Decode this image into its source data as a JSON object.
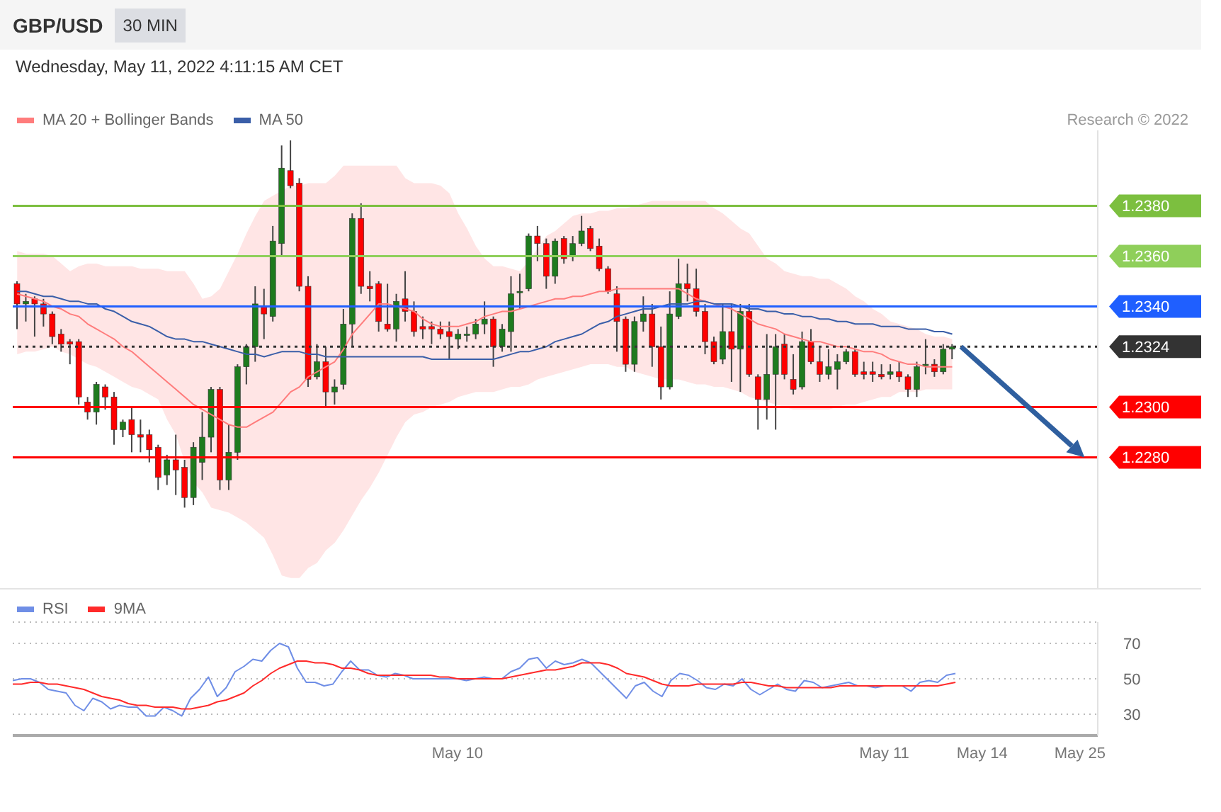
{
  "chart_data": [
    {
      "type": "candlestick",
      "title": "GBP/USD",
      "subtitle": "Wednesday, May 11, 2022 4:11:15 AM CET",
      "annotations": [
        "30 MIN",
        "Research © 2022"
      ],
      "categories": [
        null,
        null,
        null,
        null,
        null,
        null,
        null,
        null,
        null,
        null,
        null,
        null,
        null,
        null,
        null,
        null,
        null,
        null,
        null,
        null,
        null,
        null,
        null,
        null,
        null,
        null,
        null,
        null,
        null,
        null,
        null,
        null,
        null,
        null,
        null,
        null,
        null,
        null,
        null,
        null,
        null,
        null,
        null,
        null,
        null,
        null,
        null,
        null,
        null,
        null,
        null,
        null,
        null,
        null,
        null,
        null,
        null,
        null,
        null,
        null,
        null,
        null,
        null,
        null,
        null,
        null,
        null,
        null,
        null,
        null,
        null,
        null,
        null,
        null,
        null,
        null,
        null,
        null,
        null,
        null,
        null,
        null,
        null,
        null,
        null,
        null,
        null,
        null,
        null,
        null,
        null,
        null,
        null,
        null,
        null,
        null,
        null,
        null,
        null,
        null,
        null,
        null,
        null,
        null,
        null,
        null,
        null
      ],
      "ohlc": [
        [
          1.2349,
          1.235,
          1.2331,
          1.2341
        ],
        [
          1.2341,
          1.2345,
          1.2334,
          1.2342
        ],
        [
          1.2343,
          1.2344,
          1.2328,
          1.2341
        ],
        [
          1.2341,
          1.2343,
          1.2332,
          1.2337
        ],
        [
          1.2337,
          1.2338,
          1.2325,
          1.2328
        ],
        [
          1.2329,
          1.2331,
          1.2322,
          1.2325
        ],
        [
          1.2326,
          1.2327,
          1.2317,
          1.2325
        ],
        [
          1.2326,
          1.2327,
          1.2301,
          1.2304
        ],
        [
          1.2302,
          1.2304,
          1.2295,
          1.2298
        ],
        [
          1.2298,
          1.231,
          1.2293,
          1.2309
        ],
        [
          1.2308,
          1.2309,
          1.2299,
          1.2304
        ],
        [
          1.2304,
          1.2306,
          1.2285,
          1.2291
        ],
        [
          1.2291,
          1.2295,
          1.2288,
          1.2294
        ],
        [
          1.2295,
          1.23,
          1.2282,
          1.2289
        ],
        [
          1.2289,
          1.2295,
          1.2282,
          1.2288
        ],
        [
          1.2289,
          1.2291,
          1.2278,
          1.2283
        ],
        [
          1.2284,
          1.2285,
          1.2267,
          1.2272
        ],
        [
          1.2273,
          1.2281,
          1.2269,
          1.2279
        ],
        [
          1.2279,
          1.2289,
          1.2265,
          1.2275
        ],
        [
          1.2276,
          1.2279,
          1.226,
          1.2264
        ],
        [
          1.2264,
          1.2286,
          1.2261,
          1.2284
        ],
        [
          1.2278,
          1.2298,
          1.2271,
          1.2288
        ],
        [
          1.2288,
          1.2308,
          1.2282,
          1.2307
        ],
        [
          1.2307,
          1.2308,
          1.2267,
          1.2271
        ],
        [
          1.2271,
          1.2293,
          1.2267,
          1.2282
        ],
        [
          1.2282,
          1.2317,
          1.2279,
          1.2316
        ],
        [
          1.2316,
          1.2325,
          1.2309,
          1.2324
        ],
        [
          1.2324,
          1.2348,
          1.2318,
          1.2341
        ],
        [
          1.234,
          1.2347,
          1.2327,
          1.2337
        ],
        [
          1.2336,
          1.2372,
          1.2334,
          1.2366
        ],
        [
          1.2365,
          1.2404,
          1.236,
          1.2395
        ],
        [
          1.2394,
          1.2406,
          1.2387,
          1.2388
        ],
        [
          1.2389,
          1.2391,
          1.2346,
          1.2348
        ],
        [
          1.2348,
          1.2352,
          1.2308,
          1.2311
        ],
        [
          1.2312,
          1.2325,
          1.2311,
          1.2318
        ],
        [
          1.2318,
          1.2324,
          1.23,
          1.2306
        ],
        [
          1.2306,
          1.2311,
          1.2301,
          1.2308
        ],
        [
          1.2309,
          1.2339,
          1.2307,
          1.2333
        ],
        [
          1.2333,
          1.2377,
          1.2324,
          1.2375
        ],
        [
          1.2375,
          1.2381,
          1.2345,
          1.2348
        ],
        [
          1.2348,
          1.2354,
          1.2342,
          1.2347
        ],
        [
          1.2349,
          1.235,
          1.233,
          1.2334
        ],
        [
          1.2333,
          1.2349,
          1.233,
          1.2331
        ],
        [
          1.2331,
          1.2345,
          1.2326,
          1.2342
        ],
        [
          1.2343,
          1.2354,
          1.2334,
          1.2338
        ],
        [
          1.2338,
          1.2342,
          1.2328,
          1.233
        ],
        [
          1.2332,
          1.2336,
          1.2327,
          1.2331
        ],
        [
          1.2332,
          1.2334,
          1.2325,
          1.2331
        ],
        [
          1.2331,
          1.2334,
          1.2327,
          1.2329
        ],
        [
          1.233,
          1.2334,
          1.2319,
          1.2328
        ],
        [
          1.2327,
          1.2331,
          1.2323,
          1.2329
        ],
        [
          1.2329,
          1.2332,
          1.2326,
          1.2329
        ],
        [
          1.2329,
          1.2335,
          1.2327,
          1.2333
        ],
        [
          1.2333,
          1.2342,
          1.2329,
          1.2335
        ],
        [
          1.2335,
          1.2336,
          1.2316,
          1.2324
        ],
        [
          1.2324,
          1.2333,
          1.2322,
          1.2331
        ],
        [
          1.233,
          1.2352,
          1.2322,
          1.2345
        ],
        [
          1.2346,
          1.2353,
          1.2339,
          1.2346
        ],
        [
          1.2347,
          1.2369,
          1.2346,
          1.2368
        ],
        [
          1.2368,
          1.2372,
          1.2358,
          1.2365
        ],
        [
          1.2365,
          1.2367,
          1.2347,
          1.2352
        ],
        [
          1.2352,
          1.2367,
          1.2349,
          1.2366
        ],
        [
          1.2367,
          1.2368,
          1.2357,
          1.2359
        ],
        [
          1.236,
          1.2368,
          1.2358,
          1.2365
        ],
        [
          1.2365,
          1.2376,
          1.2364,
          1.237
        ],
        [
          1.2371,
          1.2372,
          1.2362,
          1.2363
        ],
        [
          1.2364,
          1.2367,
          1.2354,
          1.2355
        ],
        [
          1.2355,
          1.2356,
          1.2345,
          1.2346
        ],
        [
          1.2345,
          1.2348,
          1.2322,
          1.2334
        ],
        [
          1.2335,
          1.2336,
          1.2314,
          1.2317
        ],
        [
          1.2317,
          1.2336,
          1.2314,
          1.2334
        ],
        [
          1.2334,
          1.2344,
          1.233,
          1.2337
        ],
        [
          1.2337,
          1.2341,
          1.2316,
          1.2324
        ],
        [
          1.2324,
          1.2332,
          1.2303,
          1.2308
        ],
        [
          1.2308,
          1.2346,
          1.2307,
          1.2337
        ],
        [
          1.2336,
          1.2359,
          1.2335,
          1.2349
        ],
        [
          1.2349,
          1.2357,
          1.2342,
          1.2347
        ],
        [
          1.2347,
          1.2355,
          1.2336,
          1.2338
        ],
        [
          1.2338,
          1.2341,
          1.2321,
          1.2326
        ],
        [
          1.2326,
          1.2328,
          1.2317,
          1.2318
        ],
        [
          1.2319,
          1.2341,
          1.2317,
          1.233
        ],
        [
          1.233,
          1.2341,
          1.231,
          1.2323
        ],
        [
          1.2323,
          1.2341,
          1.2306,
          1.2338
        ],
        [
          1.2338,
          1.2341,
          1.2312,
          1.2313
        ],
        [
          1.2312,
          1.2313,
          1.2291,
          1.2303
        ],
        [
          1.2303,
          1.2329,
          1.2295,
          1.2313
        ],
        [
          1.2313,
          1.2329,
          1.2291,
          1.2324
        ],
        [
          1.2325,
          1.2329,
          1.2311,
          1.2313
        ],
        [
          1.2311,
          1.2321,
          1.2305,
          1.2307
        ],
        [
          1.2308,
          1.233,
          1.2307,
          1.2326
        ],
        [
          1.2326,
          1.2331,
          1.2317,
          1.2318
        ],
        [
          1.2318,
          1.2324,
          1.231,
          1.2313
        ],
        [
          1.2313,
          1.2323,
          1.2311,
          1.2316
        ],
        [
          1.2315,
          1.2321,
          1.2307,
          1.2318
        ],
        [
          1.2318,
          1.2323,
          1.2317,
          1.2322
        ],
        [
          1.2322,
          1.2323,
          1.2312,
          1.2313
        ],
        [
          1.2314,
          1.2318,
          1.2311,
          1.2313
        ],
        [
          1.2314,
          1.2318,
          1.231,
          1.2313
        ],
        [
          1.2313,
          1.2317,
          1.2311,
          1.2312
        ],
        [
          1.2313,
          1.2317,
          1.2311,
          1.2314
        ],
        [
          1.2314,
          1.2318,
          1.231,
          1.2312
        ],
        [
          1.2312,
          1.2313,
          1.2304,
          1.2307
        ],
        [
          1.2307,
          1.2318,
          1.2304,
          1.2316
        ],
        [
          1.2317,
          1.2327,
          1.2313,
          1.2317
        ],
        [
          1.2317,
          1.2319,
          1.2312,
          1.2314
        ],
        [
          1.2314,
          1.2325,
          1.2313,
          1.2323
        ],
        [
          1.2323,
          1.2325,
          1.2319,
          1.2324
        ]
      ],
      "colors": [
        "#ff0000",
        "#1e7b1e",
        "#ff0000",
        "#ff0000",
        "#ff0000",
        "#ff0000",
        "#ff0000",
        "#ff0000",
        "#ff0000",
        "#1e7b1e",
        "#ff0000",
        "#ff0000",
        "#1e7b1e",
        "#ff0000",
        "#ff0000",
        "#ff0000",
        "#ff0000",
        "#1e7b1e",
        "#ff0000",
        "#ff0000",
        "#1e7b1e",
        "#1e7b1e",
        "#1e7b1e",
        "#ff0000",
        "#1e7b1e",
        "#1e7b1e",
        "#1e7b1e",
        "#1e7b1e",
        "#ff0000",
        "#1e7b1e",
        "#1e7b1e",
        "#ff0000",
        "#ff0000",
        "#ff0000",
        "#1e7b1e",
        "#ff0000",
        "#1e7b1e",
        "#1e7b1e",
        "#1e7b1e",
        "#ff0000",
        "#ff0000",
        "#ff0000",
        "#ff0000",
        "#1e7b1e",
        "#ff0000",
        "#ff0000",
        "#ff0000",
        "#ff0000",
        "#ff0000",
        "#ff0000",
        "#1e7b1e",
        "#1e7b1e",
        "#1e7b1e",
        "#1e7b1e",
        "#ff0000",
        "#1e7b1e",
        "#1e7b1e",
        "#1e7b1e",
        "#1e7b1e",
        "#ff0000",
        "#ff0000",
        "#1e7b1e",
        "#ff0000",
        "#1e7b1e",
        "#1e7b1e",
        "#ff0000",
        "#ff0000",
        "#ff0000",
        "#ff0000",
        "#ff0000",
        "#1e7b1e",
        "#1e7b1e",
        "#ff0000",
        "#ff0000",
        "#1e7b1e",
        "#1e7b1e",
        "#ff0000",
        "#ff0000",
        "#ff0000",
        "#ff0000",
        "#1e7b1e",
        "#ff0000",
        "#1e7b1e",
        "#ff0000",
        "#ff0000",
        "#1e7b1e",
        "#1e7b1e",
        "#ff0000",
        "#ff0000",
        "#1e7b1e",
        "#ff0000",
        "#ff0000",
        "#1e7b1e",
        "#1e7b1e",
        "#1e7b1e",
        "#ff0000",
        "#ff0000",
        "#ff0000",
        "#ff0000",
        "#1e7b1e",
        "#ff0000",
        "#ff0000",
        "#1e7b1e",
        "#1e7b1e",
        "#ff0000",
        "#1e7b1e",
        "#1e7b1e"
      ],
      "series": [
        {
          "name": "MA 20 + Bollinger Bands",
          "type": "line",
          "color": "#ff7c7c",
          "values": [
            1.2345,
            1.2344,
            1.2343,
            1.2342,
            1.234,
            1.2339,
            1.2337,
            1.2336,
            1.2333,
            1.2331,
            1.2329,
            1.2327,
            1.2324,
            1.2322,
            1.2319,
            1.2316,
            1.2313,
            1.231,
            1.2307,
            1.2304,
            1.2301,
            1.2299,
            1.2297,
            1.2295,
            1.2293,
            1.2292,
            1.2292,
            1.2294,
            1.2296,
            1.2298,
            1.2302,
            1.2306,
            1.2308,
            1.2312,
            1.2314,
            1.2316,
            1.2318,
            1.2323,
            1.2329,
            1.2333,
            1.2337,
            1.2341,
            1.2341,
            1.234,
            1.2339,
            1.2338,
            1.2335,
            1.2333,
            1.2332,
            1.2332,
            1.2332,
            1.2333,
            1.2334,
            1.2336,
            1.2337,
            1.2338,
            1.2338,
            1.2339,
            1.234,
            1.2341,
            1.2342,
            1.2343,
            1.2343,
            1.2344,
            1.2344,
            1.2345,
            1.2346,
            1.2346,
            1.2347,
            1.2347,
            1.2347,
            1.2347,
            1.2347,
            1.2347,
            1.2347,
            1.2347,
            1.2345,
            1.2343,
            1.2342,
            1.2341,
            1.234,
            1.2339,
            1.2337,
            1.2335,
            1.2333,
            1.2332,
            1.2331,
            1.2329,
            1.2328,
            1.2327,
            1.2326,
            1.2326,
            1.2325,
            1.2324,
            1.2324,
            1.2323,
            1.2322,
            1.2322,
            1.2321,
            1.2319,
            1.2318,
            1.2317,
            1.2317,
            1.2316,
            1.2316,
            1.2316,
            1.2316
          ],
          "lower": [
            1.2321,
            1.2322,
            1.2322,
            1.2323,
            1.2324,
            1.2322,
            1.2321,
            1.2319,
            1.2317,
            1.2316,
            1.2314,
            1.2312,
            1.231,
            1.2308,
            1.2307,
            1.2305,
            1.2303,
            1.2295,
            1.2289,
            1.2278,
            1.227,
            1.2266,
            1.226,
            1.2259,
            1.2258,
            1.2256,
            1.2254,
            1.2251,
            1.2248,
            1.2241,
            1.2233,
            1.2232,
            1.2232,
            1.2236,
            1.2238,
            1.2243,
            1.2246,
            1.2251,
            1.2257,
            1.2263,
            1.2268,
            1.2274,
            1.2281,
            1.2288,
            1.2294,
            1.2297,
            1.2298,
            1.23,
            1.2301,
            1.2302,
            1.2304,
            1.2305,
            1.2306,
            1.2306,
            1.2306,
            1.2307,
            1.2308,
            1.2308,
            1.2309,
            1.2311,
            1.2312,
            1.2313,
            1.2314,
            1.2315,
            1.2316,
            1.2317,
            1.2317,
            1.2317,
            1.2316,
            1.2316,
            1.2314,
            1.2313,
            1.2312,
            1.2311,
            1.2311,
            1.2311,
            1.231,
            1.2309,
            1.2309,
            1.2308,
            1.2308,
            1.2307,
            1.2306,
            1.2304,
            1.2303,
            1.2302,
            1.2301,
            1.23,
            1.2299,
            1.2299,
            1.2299,
            1.2299,
            1.2299,
            1.23,
            1.2301,
            1.2301,
            1.2302,
            1.2303,
            1.2304,
            1.2304,
            1.2306,
            1.2306,
            1.2306,
            1.2307,
            1.2307,
            1.2307,
            1.2307
          ],
          "upper": [
            1.2362,
            1.2361,
            1.2361,
            1.2361,
            1.236,
            1.2357,
            1.2354,
            1.2356,
            1.2357,
            1.2357,
            1.2356,
            1.2356,
            1.2356,
            1.2356,
            1.2355,
            1.2355,
            1.2355,
            1.2354,
            1.2354,
            1.2354,
            1.2349,
            1.2343,
            1.2344,
            1.2347,
            1.2354,
            1.2361,
            1.2369,
            1.2376,
            1.2382,
            1.2384,
            1.2386,
            1.2388,
            1.2388,
            1.2389,
            1.2389,
            1.2389,
            1.2392,
            1.2396,
            1.2396,
            1.2396,
            1.2396,
            1.2396,
            1.2396,
            1.2396,
            1.2391,
            1.2389,
            1.2389,
            1.2389,
            1.2388,
            1.2385,
            1.2377,
            1.2371,
            1.2364,
            1.2359,
            1.2356,
            1.2356,
            1.2355,
            1.2354,
            1.2358,
            1.2363,
            1.2368,
            1.237,
            1.2373,
            1.2376,
            1.2377,
            1.2377,
            1.2378,
            1.2378,
            1.2379,
            1.2379,
            1.238,
            1.2381,
            1.2382,
            1.2382,
            1.2382,
            1.2382,
            1.2382,
            1.2382,
            1.2382,
            1.2379,
            1.2377,
            1.2374,
            1.2371,
            1.2369,
            1.2364,
            1.2359,
            1.2357,
            1.2354,
            1.2353,
            1.2352,
            1.2352,
            1.2351,
            1.2351,
            1.2349,
            1.2347,
            1.2344,
            1.2342,
            1.2339,
            1.2337,
            1.2334,
            1.2333,
            1.2332,
            1.2331,
            1.2329,
            1.2328,
            1.2328,
            1.2327
          ]
        },
        {
          "name": "MA 50",
          "type": "line",
          "color": "#3a5ea8",
          "values": [
            1.2346,
            1.2346,
            1.2345,
            1.2344,
            1.2344,
            1.2343,
            1.2342,
            1.2342,
            1.2341,
            1.2341,
            1.2339,
            1.2338,
            1.2336,
            1.2334,
            1.2333,
            1.2332,
            1.233,
            1.2328,
            1.2327,
            1.2327,
            1.2326,
            1.2326,
            1.2325,
            1.2324,
            1.2323,
            1.2322,
            1.2321,
            1.2321,
            1.232,
            1.2321,
            1.2322,
            1.2322,
            1.2322,
            1.2321,
            1.2321,
            1.232,
            1.232,
            1.232,
            1.232,
            1.232,
            1.232,
            1.232,
            1.232,
            1.232,
            1.232,
            1.232,
            1.232,
            1.2319,
            1.2319,
            1.2319,
            1.2319,
            1.2319,
            1.2319,
            1.2319,
            1.2319,
            1.232,
            1.2321,
            1.2322,
            1.2322,
            1.2323,
            1.2324,
            1.2326,
            1.2327,
            1.2328,
            1.2329,
            1.2331,
            1.2333,
            1.2334,
            1.2336,
            1.2337,
            1.2338,
            1.2339,
            1.2339,
            1.234,
            1.2341,
            1.2341,
            1.2341,
            1.2342,
            1.2342,
            1.2341,
            1.2341,
            1.2341,
            1.234,
            1.2339,
            1.2339,
            1.2338,
            1.2338,
            1.2337,
            1.2337,
            1.2336,
            1.2336,
            1.2335,
            1.2335,
            1.2334,
            1.2334,
            1.2333,
            1.2333,
            1.2333,
            1.2332,
            1.2332,
            1.2332,
            1.2331,
            1.2331,
            1.2331,
            1.233,
            1.233,
            1.2329
          ]
        }
      ],
      "ylim": [
        1.2228,
        1.241
      ],
      "yticks": [
        {
          "value": 1.228,
          "label": "1.2280"
        },
        {
          "value": 1.23,
          "label": "1.2300"
        },
        1.2324,
        {
          "value": 1.234,
          "label": "1.2340"
        },
        {
          "value": 1.236,
          "label": "1.2360"
        },
        {
          "value": 1.238,
          "label": "1.2380"
        }
      ],
      "tick_labels": "y",
      "legend": "top left",
      "ref_lines": [
        {
          "axis": "y",
          "value": 1.238,
          "color": "#7cbf3f"
        },
        {
          "axis": "y",
          "value": 1.236,
          "color": "#8fcf5a"
        },
        {
          "axis": "y",
          "value": 1.234,
          "color": "#1f5fff"
        },
        {
          "axis": "y",
          "value": 1.2324,
          "color": "#333333",
          "line_style": "dotted"
        },
        {
          "axis": "y",
          "value": 1.23,
          "color": "#ff0000"
        },
        {
          "axis": "y",
          "value": 1.228,
          "color": "#ff0000"
        }
      ]
    },
    {
      "type": "line",
      "categories": [
        null,
        null,
        null,
        null,
        null,
        null,
        null,
        null,
        null,
        null,
        null,
        null,
        null,
        null,
        null,
        null,
        null,
        null,
        null,
        null,
        null,
        null,
        null,
        null,
        null,
        null,
        null,
        null,
        null,
        null,
        null,
        null,
        null,
        null,
        null,
        null,
        null,
        null,
        null,
        null,
        null,
        null,
        null,
        null,
        null,
        null,
        null,
        null,
        null,
        null,
        "May 10",
        null,
        null,
        null,
        null,
        null,
        null,
        null,
        null,
        null,
        null,
        null,
        null,
        null,
        null,
        null,
        null,
        null,
        null,
        null,
        null,
        null,
        null,
        null,
        null,
        null,
        null,
        null,
        null,
        null,
        null,
        null,
        null,
        null,
        null,
        null,
        null,
        null,
        null,
        null,
        null,
        null,
        null,
        null,
        null,
        null,
        null,
        null,
        "May 11",
        null,
        null,
        null,
        null,
        null,
        null,
        null,
        null,
        null,
        null,
        "May 14",
        null,
        null,
        null,
        null,
        null,
        null,
        null,
        null,
        null,
        null,
        "May 25",
        null,
        null
      ],
      "series": [
        {
          "name": "RSI",
          "color": "#6f8ee6",
          "values": [
            49,
            50,
            50,
            48,
            44,
            43,
            42,
            35,
            32,
            39,
            37,
            33,
            35,
            34,
            34,
            29,
            29,
            34,
            32,
            29,
            39,
            44,
            51,
            40,
            45,
            54,
            57,
            61,
            60,
            66,
            70,
            68,
            56,
            48,
            48,
            46,
            47,
            54,
            60,
            55,
            55,
            52,
            51,
            53,
            52,
            50,
            50,
            50,
            50,
            50,
            50,
            49,
            50,
            51,
            50,
            50,
            54,
            56,
            61,
            62,
            56,
            60,
            58,
            59,
            61,
            59,
            54,
            49,
            44,
            39,
            46,
            48,
            43,
            40,
            49,
            53,
            52,
            49,
            45,
            44,
            47,
            46,
            50,
            44,
            41,
            44,
            47,
            44,
            43,
            49,
            48,
            45,
            46,
            47,
            48,
            46,
            46,
            45,
            46,
            46,
            46,
            43,
            48,
            49,
            48,
            52,
            53,
            null,
            null,
            null,
            null,
            null,
            null,
            null,
            null,
            null,
            null,
            null,
            null,
            null,
            null,
            null,
            null
          ]
        },
        {
          "name": "9MA",
          "color": "#ff2a2a",
          "values": [
            47,
            47,
            48,
            48,
            47,
            47,
            46,
            45,
            44,
            42,
            40,
            39,
            38,
            36,
            35,
            35,
            34,
            34,
            34,
            33,
            33,
            34,
            35,
            37,
            38,
            40,
            42,
            46,
            49,
            53,
            56,
            58,
            60,
            60,
            59,
            59,
            58,
            56,
            56,
            55,
            53,
            52,
            52,
            52,
            52,
            52,
            52,
            52,
            51,
            51,
            50,
            50,
            50,
            50,
            50,
            50,
            51,
            52,
            53,
            54,
            55,
            55,
            56,
            57,
            59,
            59,
            59,
            58,
            56,
            53,
            52,
            51,
            49,
            47,
            46,
            46,
            46,
            47,
            47,
            47,
            47,
            47,
            48,
            48,
            47,
            46,
            46,
            45,
            45,
            45,
            45,
            45,
            45,
            46,
            46,
            46,
            46,
            46,
            46,
            46,
            46,
            46,
            46,
            46,
            46,
            47,
            48,
            null,
            null,
            null,
            null,
            null,
            null,
            null,
            null,
            null,
            null,
            null,
            null,
            null,
            null,
            null,
            null
          ]
        }
      ],
      "ylim": [
        18,
        82
      ],
      "yticks": [
        30,
        50,
        70
      ],
      "grid": "y",
      "legend": "top left"
    }
  ]
}
